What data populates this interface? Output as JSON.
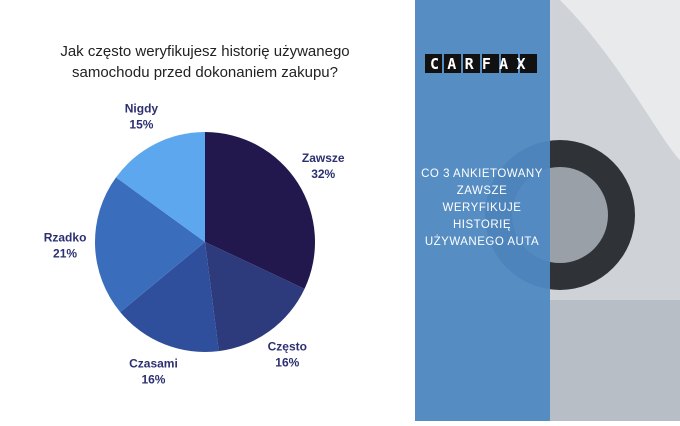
{
  "chart_data": {
    "type": "pie",
    "title_lines": [
      "Jak często weryfikujesz historię używanego",
      "samochodu przed dokonaniem zakupu?"
    ],
    "categories": [
      "Zawsze",
      "Często",
      "Czasami",
      "Rzadko",
      "Nigdy"
    ],
    "values": [
      32,
      16,
      16,
      21,
      15
    ],
    "value_labels": [
      "32%",
      "16%",
      "16%",
      "21%",
      "15%"
    ],
    "colors": [
      "#22184e",
      "#2d3a7c",
      "#2f4e9c",
      "#3a6ebd",
      "#5da7ee"
    ]
  },
  "panel": {
    "logo": "CARFAX",
    "text_lines": [
      "CO 3 ANKIETOWANY",
      "ZAWSZE",
      "WERYFIKUJE",
      "HISTORIĘ",
      "UŻYWANEGO AUTA"
    ]
  }
}
